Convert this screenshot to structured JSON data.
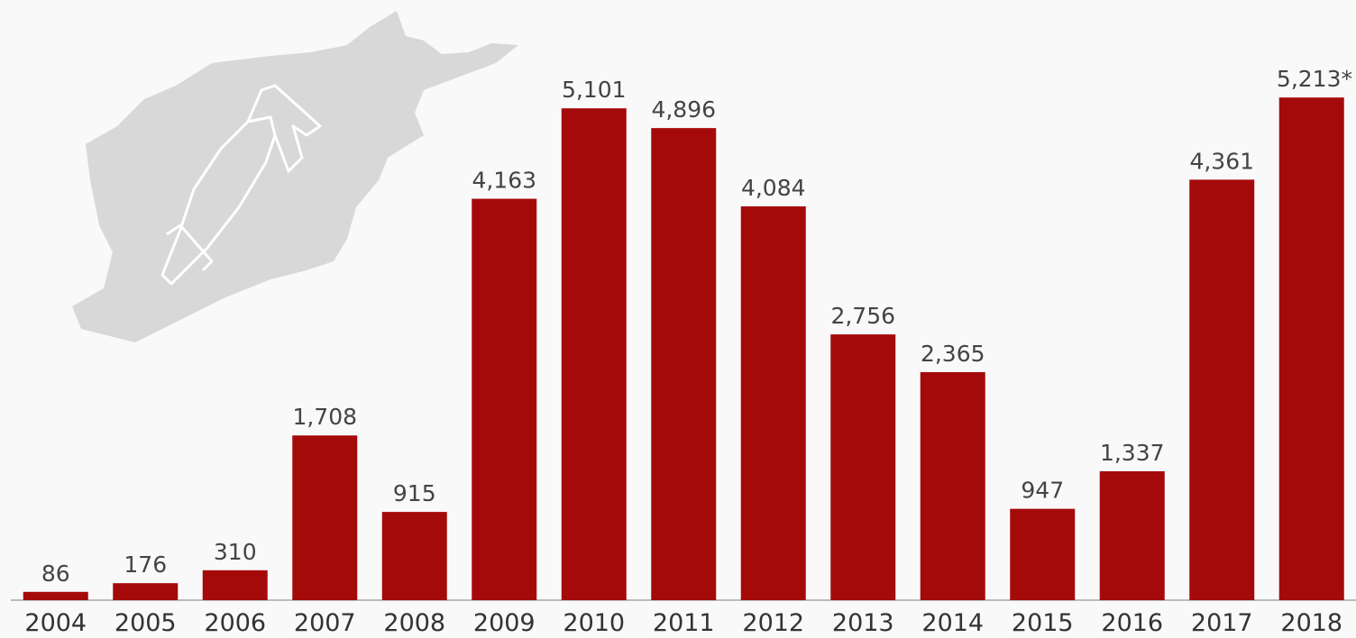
{
  "chart_data": {
    "type": "bar",
    "categories": [
      "2004",
      "2005",
      "2006",
      "2007",
      "2008",
      "2009",
      "2010",
      "2011",
      "2012",
      "2013",
      "2014",
      "2015",
      "2016",
      "2017",
      "2018"
    ],
    "values": [
      86,
      176,
      310,
      1708,
      915,
      4163,
      5101,
      4896,
      4084,
      2756,
      2365,
      947,
      1337,
      4361,
      5213
    ],
    "value_labels": [
      "86",
      "176",
      "310",
      "1,708",
      "915",
      "4,163",
      "5,101",
      "4,896",
      "4,084",
      "2,756",
      "2,365",
      "947",
      "1,337",
      "4,361",
      "5,213*"
    ],
    "color": "#a50a0a",
    "ylim": [
      0,
      6000
    ]
  }
}
